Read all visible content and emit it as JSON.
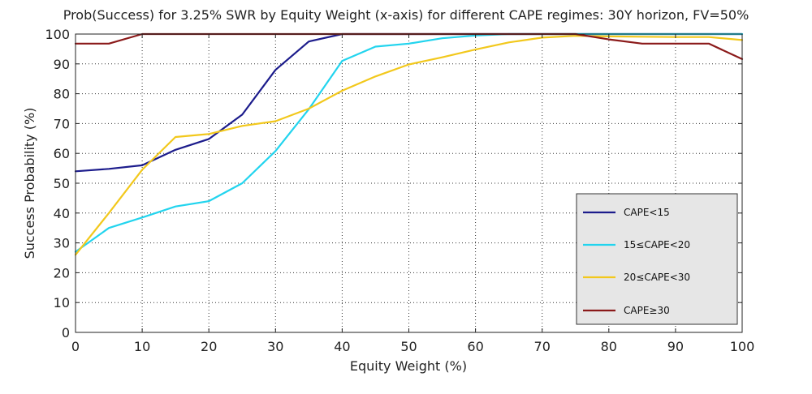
{
  "chart_data": {
    "type": "line",
    "title": "Prob(Success) for 3.25% SWR by Equity Weight (x-axis) for different CAPE regimes: 30Y horizon, FV=50%",
    "xlabel": "Equity Weight (%)",
    "ylabel": "Success Probability (%)",
    "xlim": [
      0,
      100
    ],
    "ylim": [
      0,
      100
    ],
    "xticks": [
      0,
      10,
      20,
      30,
      40,
      50,
      60,
      70,
      80,
      90,
      100
    ],
    "yticks": [
      0,
      10,
      20,
      30,
      40,
      50,
      60,
      70,
      80,
      90,
      100
    ],
    "grid": true,
    "legend_position": "bottom-right",
    "x": [
      0,
      5,
      10,
      15,
      20,
      25,
      30,
      35,
      40,
      45,
      50,
      55,
      60,
      65,
      70,
      75,
      80,
      85,
      90,
      95,
      100
    ],
    "series": [
      {
        "name": "CAPE<15",
        "color": "#1c1c8c",
        "values": [
          54,
          54.8,
          56,
          61.2,
          64.8,
          73,
          88,
          97.5,
          100,
          100,
          100,
          100,
          100,
          100,
          100,
          100,
          100,
          100,
          100,
          100,
          100
        ]
      },
      {
        "name": "15≤CAPE<20",
        "color": "#22d4ee",
        "values": [
          27,
          35,
          38.5,
          42.2,
          44,
          50,
          60.8,
          74.8,
          91,
          95.8,
          96.8,
          98.6,
          99.5,
          100,
          100,
          100,
          100,
          100,
          100,
          100,
          100
        ]
      },
      {
        "name": "20≤CAPE<30",
        "color": "#f2c81c",
        "values": [
          26,
          40,
          54.5,
          65.5,
          66.5,
          69.2,
          70.8,
          75,
          81,
          85.8,
          89.8,
          92.2,
          94.8,
          97.2,
          98.8,
          99.4,
          99.2,
          99.1,
          99,
          99,
          98
        ]
      },
      {
        "name": "CAPE≥30",
        "color": "#8b1a1a",
        "values": [
          96.8,
          96.8,
          100,
          100,
          100,
          100,
          100,
          100,
          100,
          100,
          100,
          100,
          100,
          100,
          100,
          100,
          98.2,
          96.8,
          96.8,
          96.8,
          91.6
        ]
      }
    ]
  }
}
